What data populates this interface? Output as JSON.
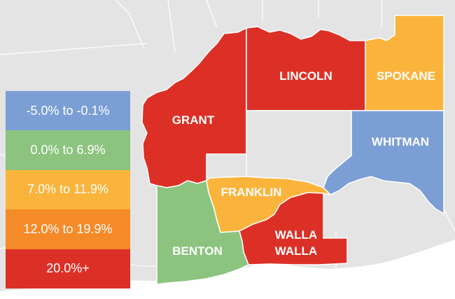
{
  "colors": {
    "background_land": "#e4e4e4",
    "background_water": "#ffffff",
    "border": "#ffffff",
    "range_neg": "#7b9fd4",
    "range_0_7": "#8cc47f",
    "range_7_12": "#fbb43b",
    "range_12_20": "#f58a28",
    "range_20_plus": "#dc3027"
  },
  "legend": {
    "items": [
      {
        "label": "-5.0% to -0.1%",
        "color": "#7b9fd4"
      },
      {
        "label": "0.0% to 6.9%",
        "color": "#8cc47f"
      },
      {
        "label": "7.0% to 11.9%",
        "color": "#fbb43b"
      },
      {
        "label": "12.0% to 19.9%",
        "color": "#f58a28"
      },
      {
        "label": "20.0%+",
        "color": "#dc3027"
      }
    ]
  },
  "counties": {
    "grant": {
      "name": "GRANT",
      "color": "#dc3027"
    },
    "lincoln": {
      "name": "LINCOLN",
      "color": "#dc3027"
    },
    "spokane": {
      "name": "SPOKANE",
      "color": "#fbb43b"
    },
    "whitman": {
      "name": "WHITMAN",
      "color": "#7b9fd4"
    },
    "franklin": {
      "name": "FRANKLIN",
      "color": "#fbb43b"
    },
    "benton": {
      "name": "BENTON",
      "color": "#8cc47f"
    },
    "walla_walla": {
      "line1": "WALLA",
      "line2": "WALLA",
      "color": "#dc3027"
    }
  }
}
